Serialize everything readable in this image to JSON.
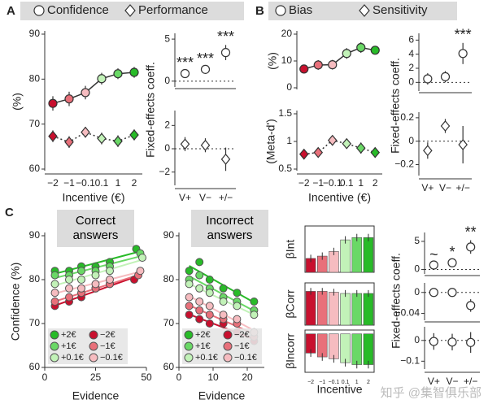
{
  "chart_data": [
    {
      "type": "line",
      "panel": "A",
      "ylabel": "(%)",
      "xlabel": "Incentive (€)",
      "categories": [
        "−2",
        "−1",
        "−0.1",
        "0.1",
        "1",
        "2"
      ],
      "colors": [
        "#c8102e",
        "#e8707a",
        "#f6bcc0",
        "#c2f2b8",
        "#6ad866",
        "#28bb28"
      ],
      "ylim": [
        60,
        90
      ],
      "yticks": [
        60,
        70,
        80,
        90
      ],
      "series": [
        {
          "name": "Confidence",
          "marker": "circle",
          "style": "solid",
          "values": [
            74.6,
            75.6,
            77.0,
            80.1,
            81.2,
            81.5
          ],
          "errors": [
            1.6,
            1.6,
            1.5,
            1.3,
            1.2,
            1.2
          ]
        },
        {
          "name": "Performance",
          "marker": "diamond",
          "style": "dotted",
          "values": [
            67.3,
            66.0,
            68.2,
            66.8,
            66.2,
            67.6
          ],
          "errors": [
            1.3,
            1.3,
            1.2,
            1.3,
            1.3,
            1.2
          ]
        }
      ]
    },
    {
      "type": "point",
      "ylabel": "Fixed-effects coeff.",
      "marker": "circle",
      "values": [
        0.9,
        1.4,
        3.4
      ],
      "errors": [
        0.3,
        0.3,
        0.9
      ],
      "annotations": [
        "***",
        "***",
        "***"
      ],
      "ylim": [
        -0.5,
        5.3
      ],
      "yticks": [
        0,
        5
      ]
    },
    {
      "type": "point",
      "marker": "diamond",
      "categories": [
        "V+",
        "V−",
        "+/−"
      ],
      "values": [
        0.4,
        0.3,
        -0.9
      ],
      "errors": [
        0.6,
        0.6,
        1.0
      ],
      "ylim": [
        -3,
        3
      ],
      "yticks": [
        {
          "value": -2,
          "label": "−2"
        },
        0,
        2
      ]
    },
    {
      "type": "line",
      "panel": "B",
      "ylabel": "(%)",
      "colors": [
        "#c8102e",
        "#e8707a",
        "#f6bcc0",
        "#c2f2b8",
        "#6ad866",
        "#28bb28"
      ],
      "ylim": [
        0,
        20
      ],
      "yticks": [
        0,
        10,
        20
      ],
      "series": [
        {
          "name": "Bias",
          "marker": "circle",
          "style": "solid",
          "values": [
            7,
            8.5,
            8.6,
            12.8,
            15,
            14
          ],
          "errors": [
            1.5,
            1.8,
            1.8,
            2,
            2,
            1.5
          ]
        }
      ]
    },
    {
      "type": "line",
      "ylabel": "(Meta-d')",
      "xlabel": "Incentive (€)",
      "categories": [
        "−2",
        "−1",
        "−0.1",
        "0.1",
        "1",
        "2"
      ],
      "colors": [
        "#c8102e",
        "#e8707a",
        "#f6bcc0",
        "#c2f2b8",
        "#6ad866",
        "#28bb28"
      ],
      "ylim": [
        0.5,
        1.5
      ],
      "yticks": [
        0.5,
        1,
        1.5
      ],
      "series": [
        {
          "name": "Sensitivity",
          "marker": "diamond",
          "style": "dotted",
          "values": [
            0.77,
            0.8,
            1.02,
            0.96,
            0.88,
            0.8
          ],
          "errors": [
            0.07,
            0.08,
            0.08,
            0.08,
            0.1,
            0.09
          ]
        }
      ]
    },
    {
      "type": "point",
      "ylabel": "Fixed-effects coeff.",
      "marker": "circle",
      "values": [
        0.5,
        0.8,
        4.1
      ],
      "errors": [
        0.8,
        0.8,
        1.5
      ],
      "annotations": [
        null,
        null,
        "***"
      ],
      "ylim": [
        -1,
        6.5
      ],
      "yticks": [
        0,
        2,
        4,
        6
      ]
    },
    {
      "type": "point",
      "marker": "diamond",
      "categories": [
        "V+",
        "V−",
        "+/−"
      ],
      "values": [
        -0.08,
        0.13,
        -0.03
      ],
      "errors": [
        0.07,
        0.06,
        0.16
      ],
      "ylim": [
        -0.28,
        0.22
      ],
      "yticks": [
        {
          "value": -0.2,
          "label": "−0.2"
        },
        0,
        0.2
      ]
    },
    {
      "type": "scatter",
      "panel": "C",
      "title": "Correct answers",
      "xlabel": "Evidence",
      "ylabel": "Confidence (%)",
      "legend": "lower left",
      "xlim": [
        0,
        50
      ],
      "xticks": [
        0,
        25,
        50
      ],
      "ylim": [
        60,
        90
      ],
      "yticks": [
        60,
        70,
        80,
        90
      ],
      "series": [
        {
          "name": "+2€",
          "color": "#28bb28",
          "x": [
            5,
            12,
            18,
            25,
            32,
            45
          ],
          "values": [
            82,
            82,
            83,
            83,
            84,
            87
          ]
        },
        {
          "name": "+1€",
          "color": "#6ad866",
          "x": [
            5,
            12,
            18,
            25,
            32,
            47
          ],
          "values": [
            81,
            81,
            82,
            82,
            83,
            86
          ]
        },
        {
          "name": "+0.1€",
          "color": "#c2f2b8",
          "x": [
            5,
            12,
            18,
            25,
            32,
            48
          ],
          "values": [
            79,
            80,
            80,
            81,
            82,
            85
          ]
        },
        {
          "name": "−2€",
          "color": "#c8102e",
          "x": [
            5,
            12,
            18,
            25,
            32,
            44
          ],
          "values": [
            74,
            75,
            76,
            78,
            79,
            80
          ]
        },
        {
          "name": "−1€",
          "color": "#e8707a",
          "x": [
            5,
            12,
            18,
            25,
            32,
            46
          ],
          "values": [
            75,
            76,
            77,
            78,
            79,
            81
          ]
        },
        {
          "name": "−0.1€",
          "color": "#f6bcc0",
          "x": [
            5,
            12,
            18,
            25,
            32,
            47
          ],
          "values": [
            77,
            78,
            78,
            79,
            80,
            82
          ]
        }
      ]
    },
    {
      "type": "scatter",
      "title": "Incorrect answers",
      "xlabel": "Evidence",
      "legend": "lower left",
      "xlim": [
        0,
        25
      ],
      "xticks": [
        0,
        10,
        20
      ],
      "ylim": [
        60,
        90
      ],
      "yticks": [
        60,
        70,
        80,
        90
      ],
      "series": [
        {
          "name": "+2€",
          "color": "#28bb28",
          "x": [
            3,
            6,
            9,
            13,
            17,
            22
          ],
          "values": [
            82,
            84,
            80,
            78,
            77,
            75
          ]
        },
        {
          "name": "+1€",
          "color": "#6ad866",
          "x": [
            3,
            6,
            9,
            13,
            17,
            22
          ],
          "values": [
            80,
            81,
            78,
            76,
            75,
            73
          ]
        },
        {
          "name": "+0.1€",
          "color": "#c2f2b8",
          "x": [
            3,
            6,
            9,
            13,
            17,
            22
          ],
          "values": [
            79,
            78,
            77,
            75,
            74,
            72
          ]
        },
        {
          "name": "−2€",
          "color": "#c8102e",
          "x": [
            3,
            6,
            9,
            13,
            17,
            22
          ],
          "values": [
            72,
            71,
            70,
            70,
            68,
            66
          ]
        },
        {
          "name": "−1€",
          "color": "#e8707a",
          "x": [
            3,
            6,
            9,
            13,
            17,
            22
          ],
          "values": [
            74,
            73,
            72,
            71,
            70,
            67
          ]
        },
        {
          "name": "−0.1€",
          "color": "#f6bcc0",
          "x": [
            3,
            6,
            9,
            13,
            17,
            22
          ],
          "values": [
            76,
            75,
            74,
            72,
            71,
            68
          ]
        }
      ]
    },
    {
      "type": "bar",
      "ylabel": "βInt",
      "colors": [
        "#c8102e",
        "#e8707a",
        "#f6bcc0",
        "#c2f2b8",
        "#6ad866",
        "#28bb28"
      ],
      "values": [
        0.3,
        0.35,
        0.45,
        0.7,
        0.75,
        0.75
      ],
      "errors": [
        0.08,
        0.08,
        0.08,
        0.08,
        0.08,
        0.08
      ],
      "ylim": [
        0,
        1
      ]
    },
    {
      "type": "bar",
      "ylabel": "βCorr",
      "colors": [
        "#c8102e",
        "#e8707a",
        "#f6bcc0",
        "#c2f2b8",
        "#6ad866",
        "#28bb28"
      ],
      "values": [
        0.8,
        0.8,
        0.78,
        0.75,
        0.75,
        0.75
      ],
      "errors": [
        0.08,
        0.08,
        0.08,
        0.08,
        0.08,
        0.08
      ],
      "ylim": [
        0,
        1
      ]
    },
    {
      "type": "bar",
      "ylabel": "βIncorr",
      "xlabel": "Incentive",
      "categories": [
        "−2",
        "−1",
        "−0.1",
        "0.1",
        "1",
        "2"
      ],
      "colors": [
        "#c8102e",
        "#e8707a",
        "#f6bcc0",
        "#c2f2b8",
        "#6ad866",
        "#28bb28"
      ],
      "values": [
        -0.5,
        -0.6,
        -0.65,
        -0.75,
        -0.8,
        -0.8
      ],
      "errors": [
        0.1,
        0.1,
        0.1,
        0.1,
        0.1,
        0.1
      ],
      "ylim": [
        -1,
        0.1
      ]
    },
    {
      "type": "point",
      "marker": "circle",
      "values": [
        0.8,
        1.2,
        4
      ],
      "errors": [
        0.4,
        0.4,
        1.2
      ],
      "annotations": [
        "~",
        "*",
        "**"
      ],
      "ylim": [
        -0.5,
        6
      ],
      "yticks": [
        0,
        5
      ]
    },
    {
      "type": "point",
      "ylabel": "Fixed-effects coeff.",
      "marker": "circle",
      "values": [
        0,
        0,
        -0.025
      ],
      "errors": [
        0.008,
        0.008,
        0.012
      ],
      "ylim": [
        -0.05,
        0.012
      ],
      "yticks": [
        {
          "value": -0.04,
          "label": "−0.04"
        },
        0
      ]
    },
    {
      "type": "point",
      "marker": "circle",
      "categories": [
        "V+",
        "V−",
        "+/−"
      ],
      "values": [
        -0.005,
        -0.008,
        -0.01
      ],
      "errors": [
        0.04,
        0.04,
        0.05
      ],
      "ylim": [
        -0.13,
        0.05
      ],
      "yticks": [
        {
          "value": -0.1,
          "label": "−0.1"
        },
        0
      ]
    }
  ],
  "watermark": "知乎 @集智俱乐部"
}
